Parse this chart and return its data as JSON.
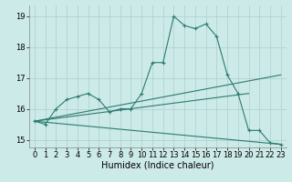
{
  "background_color": "#cceae8",
  "grid_color": "#b0d4d2",
  "line_color": "#2d7a72",
  "marker": "+",
  "marker_size": 3,
  "marker_lw": 0.8,
  "xlabel": "Humidex (Indice chaleur)",
  "xlabel_fontsize": 7,
  "ylim": [
    14.75,
    19.35
  ],
  "xlim": [
    -0.5,
    23.5
  ],
  "yticks": [
    15,
    16,
    17,
    18,
    19
  ],
  "xticks": [
    0,
    1,
    2,
    3,
    4,
    5,
    6,
    7,
    8,
    9,
    10,
    11,
    12,
    13,
    14,
    15,
    16,
    17,
    18,
    19,
    20,
    21,
    22,
    23
  ],
  "tick_fontsize": 6,
  "series": [
    {
      "x": [
        0,
        1,
        2,
        3,
        4,
        5,
        6,
        7,
        8,
        9,
        10,
        11,
        12,
        13,
        14,
        15,
        16,
        17,
        18,
        19,
        20,
        21,
        22,
        23
      ],
      "y": [
        15.6,
        15.5,
        16.0,
        16.3,
        16.4,
        16.5,
        16.3,
        15.9,
        16.0,
        16.0,
        16.5,
        17.5,
        17.5,
        19.0,
        18.7,
        18.6,
        18.75,
        18.35,
        17.1,
        16.5,
        15.3,
        15.3,
        14.9,
        14.85
      ]
    },
    {
      "x": [
        0,
        23
      ],
      "y": [
        15.6,
        17.1
      ],
      "no_marker": true
    },
    {
      "x": [
        0,
        20
      ],
      "y": [
        15.6,
        16.5
      ],
      "no_marker": true
    },
    {
      "x": [
        0,
        23
      ],
      "y": [
        15.6,
        14.85
      ],
      "no_marker": true
    }
  ]
}
